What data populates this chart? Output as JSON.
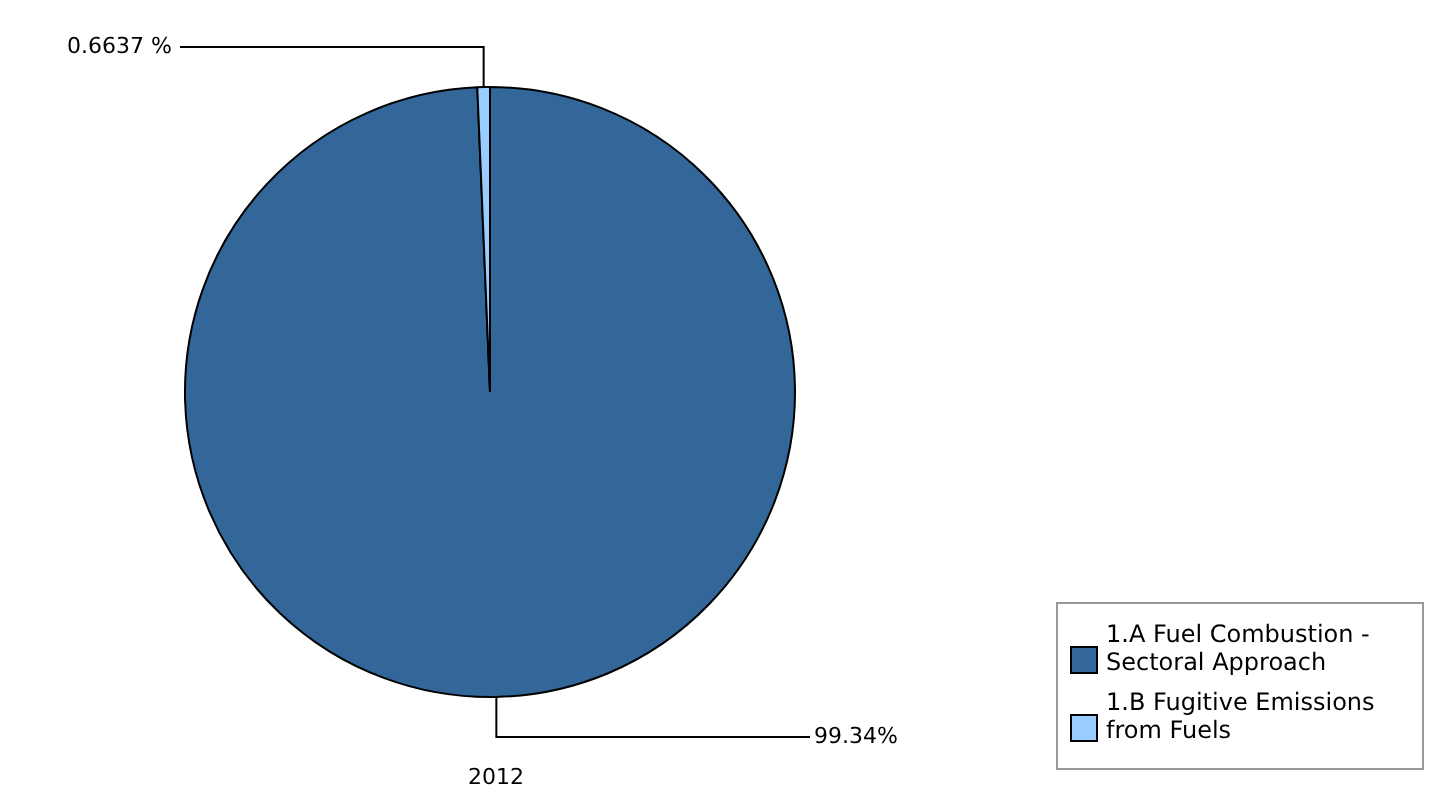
{
  "chart_data": {
    "type": "pie",
    "title": "2012",
    "categories": [
      "1.A Fuel Combustion - Sectoral Approach",
      "1.B Fugitive Emissions from Fuels"
    ],
    "values": [
      99.34,
      0.6637
    ],
    "colors": [
      "#336699",
      "#99ccff"
    ],
    "value_labels": [
      "99.34%",
      "0.6637 %"
    ],
    "legend": "bottom right"
  }
}
